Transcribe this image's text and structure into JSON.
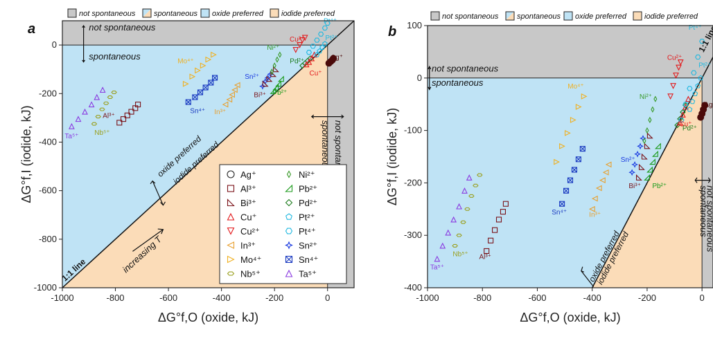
{
  "legend_keys": {
    "not_spontaneous": "not spontaneous",
    "spontaneous": "spontaneous",
    "oxide_preferred": "oxide preferred",
    "iodide_preferred": "iodide preferred"
  },
  "colors": {
    "not_spontaneous": "#c8c8c8",
    "oxide": "#bfe3f5",
    "iodide": "#fbdcb8",
    "Ag+": "#4b0a0a",
    "Al3+": "#7a1218",
    "Bi3+": "#7a1218",
    "Cu+": "#e31a1c",
    "Cu2+": "#e31a1c",
    "In3+": "#e8a030",
    "Mo4+": "#f0b020",
    "Nb5+": "#9aa020",
    "Ni2+": "#3a9a2a",
    "Pb2+": "#1a9a1a",
    "Pd2+": "#1a7a1a",
    "Pt2+": "#20b8e0",
    "Pt4+": "#20b8e0",
    "Sn2+": "#1a3ae0",
    "Sn4+": "#1a3ac0",
    "Ta5+": "#8a3ae0"
  },
  "chart_data": [
    {
      "panel_label": "a",
      "type": "scatter",
      "xlabel": "ΔG°f,O (oxide, kJ)",
      "ylabel": "ΔG°f,I (iodide, kJ)",
      "xlim": [
        -1000,
        100
      ],
      "ylim": [
        -1000,
        100
      ],
      "xticks": [
        -1000,
        -800,
        -600,
        -400,
        -200,
        0
      ],
      "yticks": [
        -1000,
        -800,
        -600,
        -400,
        -200,
        0
      ],
      "annotations": {
        "not_spontaneous_top": "not spontaneous",
        "spontaneous_top": "spontaneous",
        "not_spontaneous_side": "not spontaneous",
        "spontaneous_side": "spontaneous",
        "oxide_preferred": "oxide preferred",
        "iodide_preferred": "iodide preferred",
        "one_to_one": "1:1 line",
        "increasing_T": "increasing T"
      },
      "legend": [
        {
          "name": "Ag+",
          "label": "Ag⁺",
          "marker": "circle"
        },
        {
          "name": "Al3+",
          "label": "Al³⁺",
          "marker": "square"
        },
        {
          "name": "Bi3+",
          "label": "Bi³⁺",
          "marker": "corner"
        },
        {
          "name": "Cu+",
          "label": "Cu⁺",
          "marker": "triangle-up"
        },
        {
          "name": "Cu2+",
          "label": "Cu²⁺",
          "marker": "triangle-down"
        },
        {
          "name": "In3+",
          "label": "In³⁺",
          "marker": "triangle-left"
        },
        {
          "name": "Mo4+",
          "label": "Mo⁴⁺",
          "marker": "triangle-right"
        },
        {
          "name": "Nb5+",
          "label": "Nb⁵⁺",
          "marker": "hexagon-wide"
        },
        {
          "name": "Ni2+",
          "label": "Ni²⁺",
          "marker": "thin-diamond"
        },
        {
          "name": "Pb2+",
          "label": "Pb²⁺",
          "marker": "corner-flip"
        },
        {
          "name": "Pd2+",
          "label": "Pd²⁺",
          "marker": "diamond"
        },
        {
          "name": "Pt2+",
          "label": "Pt²⁺",
          "marker": "pentagon"
        },
        {
          "name": "Pt4+",
          "label": "Pt⁴⁺",
          "marker": "hexagon"
        },
        {
          "name": "Sn2+",
          "label": "Sn²⁺",
          "marker": "star4"
        },
        {
          "name": "Sn4+",
          "label": "Sn⁴⁺",
          "marker": "square-x"
        },
        {
          "name": "Ta5+",
          "label": "Ta⁵⁺",
          "marker": "triangle-up"
        }
      ],
      "series": [
        {
          "name": "Ta5+",
          "label": "Ta⁵⁺",
          "x": [
            -965,
            -940,
            -915,
            -890,
            -870,
            -848
          ],
          "y": [
            -335,
            -305,
            -275,
            -245,
            -215,
            -185
          ]
        },
        {
          "name": "Nb5+",
          "label": "Nb⁵⁺",
          "x": [
            -880,
            -865,
            -850,
            -835,
            -820,
            -805
          ],
          "y": [
            -325,
            -295,
            -265,
            -240,
            -215,
            -195
          ]
        },
        {
          "name": "Al3+",
          "label": "Al³⁺",
          "x": [
            -785,
            -770,
            -755,
            -740,
            -725,
            -715
          ],
          "y": [
            -320,
            -305,
            -290,
            -275,
            -260,
            -245
          ]
        },
        {
          "name": "Mo4+",
          "label": "Mo⁴⁺",
          "x": [
            -535,
            -510,
            -490,
            -470,
            -450,
            -430
          ],
          "y": [
            -160,
            -130,
            -105,
            -85,
            -60,
            -40
          ]
        },
        {
          "name": "Sn4+",
          "label": "Sn⁴⁺",
          "x": [
            -525,
            -500,
            -480,
            -460,
            -440,
            -425
          ],
          "y": [
            -235,
            -215,
            -195,
            -175,
            -155,
            -135
          ]
        },
        {
          "name": "In3+",
          "label": "In³⁺",
          "x": [
            -385,
            -370,
            -360,
            -350,
            -340
          ],
          "y": [
            -245,
            -225,
            -205,
            -185,
            -165
          ]
        },
        {
          "name": "Sn2+",
          "label": "Sn²⁺",
          "x": [
            -245,
            -235,
            -225,
            -215
          ],
          "y": [
            -170,
            -150,
            -135,
            -120
          ]
        },
        {
          "name": "Bi3+",
          "label": "Bi³⁺",
          "x": [
            -235,
            -220,
            -205,
            -195
          ],
          "y": [
            -160,
            -140,
            -120,
            -100
          ]
        },
        {
          "name": "Ni2+",
          "label": "Ni²⁺",
          "x": [
            -210,
            -200,
            -190,
            -180
          ],
          "y": [
            -110,
            -85,
            -60,
            -40
          ]
        },
        {
          "name": "Pb2+",
          "label": "Pb²⁺",
          "x": [
            -205,
            -195,
            -185,
            -175
          ],
          "y": [
            -190,
            -175,
            -160,
            -140
          ]
        },
        {
          "name": "Pd2+",
          "label": "Pd²⁺",
          "x": [
            -95,
            -85,
            -75,
            -65
          ],
          "y": [
            -85,
            -75,
            -65,
            -55
          ]
        },
        {
          "name": "Cu2+",
          "label": "Cu²⁺",
          "x": [
            -120,
            -105,
            -95,
            -85
          ],
          "y": [
            -20,
            0,
            20,
            30
          ]
        },
        {
          "name": "Cu+",
          "label": "Cu⁺",
          "x": [
            -80,
            -70,
            -60,
            -50
          ],
          "y": [
            -80,
            -70,
            -55,
            -40
          ]
        },
        {
          "name": "Pt4+",
          "label": "Pt⁴⁺",
          "x": [
            -70,
            -55,
            -40,
            -25,
            -10,
            0
          ],
          "y": [
            -30,
            -5,
            20,
            45,
            70,
            90
          ]
        },
        {
          "name": "Pt2+",
          "label": "Pt²⁺",
          "x": [
            -40,
            -30,
            -20,
            -10
          ],
          "y": [
            -40,
            -25,
            -10,
            5
          ]
        },
        {
          "name": "Ag+",
          "label": "Ag⁺",
          "x": [
            5,
            12,
            18,
            22
          ],
          "y": [
            -75,
            -68,
            -62,
            -55
          ]
        }
      ]
    },
    {
      "panel_label": "b",
      "type": "scatter",
      "xlabel": "ΔG°f,O (oxide, kJ)",
      "ylabel": "ΔG°f,I (iodide, kJ)",
      "xlim": [
        -1000,
        40
      ],
      "ylim": [
        -400,
        100
      ],
      "xticks": [
        -1000,
        -800,
        -600,
        -400,
        -200,
        0
      ],
      "yticks": [
        -400,
        -300,
        -200,
        -100,
        0,
        100
      ],
      "annotations": {
        "not_spontaneous_top": "not spontaneous",
        "spontaneous_top": "spontaneous",
        "not_spontaneous_side": "not spontaneous",
        "spontaneous_side": "spontaneous",
        "oxide_preferred": "oxide preferred",
        "iodide_preferred": "iodide preferred",
        "one_to_one": "1:1 line"
      },
      "series": [
        {
          "name": "Ta5+",
          "label": "Ta⁵⁺",
          "x": [
            -965,
            -945,
            -925,
            -905,
            -885,
            -865,
            -848
          ],
          "y": [
            -345,
            -320,
            -295,
            -270,
            -245,
            -215,
            -190
          ]
        },
        {
          "name": "Nb5+",
          "label": "Nb⁵⁺",
          "x": [
            -900,
            -885,
            -870,
            -855,
            -840,
            -825,
            -810
          ],
          "y": [
            -320,
            -300,
            -275,
            -250,
            -225,
            -205,
            -185
          ]
        },
        {
          "name": "Al3+",
          "label": "Al³⁺",
          "x": [
            -785,
            -770,
            -755,
            -740,
            -725,
            -715
          ],
          "y": [
            -330,
            -310,
            -290,
            -270,
            -255,
            -240
          ]
        },
        {
          "name": "Mo4+",
          "label": "Mo⁴⁺",
          "x": [
            -530,
            -510,
            -490,
            -470,
            -450,
            -430
          ],
          "y": [
            -160,
            -130,
            -105,
            -80,
            -55,
            -35
          ]
        },
        {
          "name": "Sn4+",
          "label": "Sn⁴⁺",
          "x": [
            -510,
            -495,
            -480,
            -465,
            -450,
            -435
          ],
          "y": [
            -240,
            -215,
            -195,
            -175,
            -155,
            -135
          ]
        },
        {
          "name": "In3+",
          "label": "In³⁺",
          "x": [
            -400,
            -390,
            -375,
            -362,
            -350,
            -340
          ],
          "y": [
            -250,
            -230,
            -210,
            -195,
            -180,
            -165
          ]
        },
        {
          "name": "Sn2+",
          "label": "Sn²⁺",
          "x": [
            -255,
            -245,
            -235,
            -225,
            -215
          ],
          "y": [
            -180,
            -165,
            -145,
            -130,
            -115
          ]
        },
        {
          "name": "Bi3+",
          "label": "Bi³⁺",
          "x": [
            -230,
            -220,
            -210,
            -200,
            -190
          ],
          "y": [
            -190,
            -170,
            -150,
            -130,
            -110
          ]
        },
        {
          "name": "Ni2+",
          "label": "Ni²⁺",
          "x": [
            -210,
            -200,
            -190,
            -180,
            -170
          ],
          "y": [
            -120,
            -100,
            -80,
            -60,
            -40
          ]
        },
        {
          "name": "Pb2+",
          "label": "Pb²⁺",
          "x": [
            -200,
            -190,
            -180,
            -170,
            -160
          ],
          "y": [
            -190,
            -175,
            -160,
            -145,
            -130
          ]
        },
        {
          "name": "Pd2+",
          "label": "Pd²⁺",
          "x": [
            -90,
            -80,
            -70,
            -60
          ],
          "y": [
            -90,
            -78,
            -65,
            -52
          ]
        },
        {
          "name": "Cu2+",
          "label": "Cu²⁺",
          "x": [
            -115,
            -105,
            -95,
            -85,
            -78
          ],
          "y": [
            -35,
            -15,
            5,
            20,
            30
          ]
        },
        {
          "name": "Cu+",
          "label": "Cu⁺",
          "x": [
            -80,
            -70,
            -60,
            -50
          ],
          "y": [
            -85,
            -70,
            -55,
            -40
          ]
        },
        {
          "name": "Pt4+",
          "label": "Pt⁴⁺",
          "x": [
            -75,
            -60,
            -45,
            -30,
            -15,
            0
          ],
          "y": [
            -80,
            -50,
            -20,
            10,
            40,
            70
          ]
        },
        {
          "name": "Pt2+",
          "label": "Pt²⁺",
          "x": [
            -45,
            -35,
            -25,
            -15,
            -5
          ],
          "y": [
            -60,
            -45,
            -30,
            -15,
            0
          ]
        },
        {
          "name": "Ag+",
          "label": "Ag⁺",
          "x": [
            -5,
            0,
            5,
            10
          ],
          "y": [
            -75,
            -68,
            -60,
            -52
          ]
        }
      ]
    }
  ]
}
